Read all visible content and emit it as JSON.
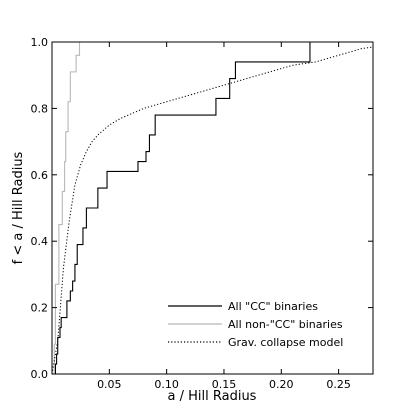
{
  "chart_data": {
    "type": "line",
    "xlabel": "a / Hill Radius",
    "ylabel": "f < a / Hill Radius",
    "xlim": [
      0.0,
      0.28
    ],
    "ylim": [
      0.0,
      1.0
    ],
    "x_ticks": [
      0.05,
      0.1,
      0.15,
      0.2,
      0.25
    ],
    "x_tick_labels": [
      "0.05",
      "0.10",
      "0.15",
      "0.20",
      "0.25"
    ],
    "y_ticks": [
      0.0,
      0.2,
      0.4,
      0.6,
      0.8,
      1.0
    ],
    "y_tick_labels": [
      "0.0",
      "0.2",
      "0.4",
      "0.6",
      "0.8",
      "1.0"
    ],
    "grid": false,
    "legend_position": "bottom-right",
    "series": [
      {
        "name": "All \"CC\" binaries",
        "color": "#000000",
        "style": "solid",
        "step": true,
        "x": [
          0.002,
          0.003,
          0.004,
          0.005,
          0.007,
          0.008,
          0.011,
          0.013,
          0.016,
          0.018,
          0.02,
          0.022,
          0.027,
          0.03,
          0.033,
          0.04,
          0.048,
          0.055,
          0.065,
          0.075,
          0.082,
          0.085,
          0.088,
          0.09,
          0.1,
          0.143,
          0.146,
          0.155,
          0.158,
          0.16,
          0.225
        ],
        "y": [
          0.0,
          0.03,
          0.06,
          0.11,
          0.14,
          0.17,
          0.17,
          0.22,
          0.25,
          0.28,
          0.33,
          0.39,
          0.44,
          0.5,
          0.5,
          0.56,
          0.61,
          0.61,
          0.61,
          0.64,
          0.67,
          0.72,
          0.72,
          0.78,
          0.78,
          0.83,
          0.83,
          0.89,
          0.89,
          0.94,
          1.0
        ]
      },
      {
        "name": "All non-\"CC\" binaries",
        "color": "#b8b8b8",
        "style": "solid",
        "step": true,
        "x": [
          0.001,
          0.002,
          0.003,
          0.006,
          0.009,
          0.011,
          0.012,
          0.014,
          0.016,
          0.019,
          0.021,
          0.024
        ],
        "y": [
          0.0,
          0.09,
          0.27,
          0.45,
          0.55,
          0.64,
          0.73,
          0.82,
          0.91,
          0.91,
          0.96,
          1.0
        ]
      },
      {
        "name": "Grav. collapse model",
        "color": "#000000",
        "style": "dotted",
        "step": false,
        "x": [
          0.0,
          0.005,
          0.01,
          0.015,
          0.02,
          0.025,
          0.03,
          0.035,
          0.04,
          0.045,
          0.05,
          0.06,
          0.07,
          0.08,
          0.09,
          0.1,
          0.11,
          0.12,
          0.13,
          0.14,
          0.15,
          0.16,
          0.17,
          0.18,
          0.19,
          0.2,
          0.21,
          0.22,
          0.23,
          0.24,
          0.25,
          0.26,
          0.27,
          0.28
        ],
        "y": [
          0.0,
          0.1,
          0.32,
          0.46,
          0.57,
          0.63,
          0.67,
          0.7,
          0.72,
          0.735,
          0.75,
          0.77,
          0.785,
          0.8,
          0.81,
          0.82,
          0.83,
          0.84,
          0.85,
          0.86,
          0.87,
          0.88,
          0.89,
          0.9,
          0.91,
          0.92,
          0.93,
          0.935,
          0.94,
          0.95,
          0.96,
          0.97,
          0.98,
          0.985
        ]
      }
    ]
  }
}
